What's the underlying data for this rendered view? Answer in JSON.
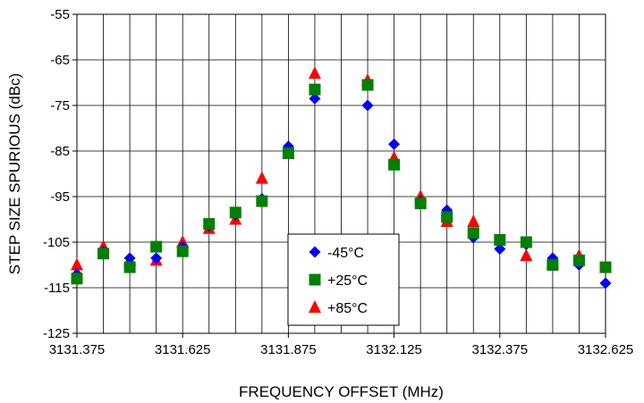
{
  "chart_data": {
    "type": "scatter",
    "title": "",
    "xlabel": "FREQUENCY OFFSET (MHz)",
    "ylabel": "STEP SIZE SPURIOUS (dBc)",
    "xlim": [
      3131.375,
      3132.625
    ],
    "ylim": [
      -125,
      -55
    ],
    "x_tick_labels": [
      "3131.375",
      "3131.625",
      "3131.875",
      "3132.125",
      "3132.375",
      "3132.625"
    ],
    "y_tick_labels": [
      "-55",
      "-65",
      "-75",
      "-85",
      "-95",
      "-105",
      "-115",
      "-125"
    ],
    "grid": true,
    "legend_position": "bottom-center",
    "x": [
      3131.375,
      3131.4375,
      3131.5,
      3131.5625,
      3131.625,
      3131.6875,
      3131.75,
      3131.8125,
      3131.875,
      3131.9375,
      3132.0,
      3132.0625,
      3132.125,
      3132.1875,
      3132.25,
      3132.3125,
      3132.375,
      3132.4375,
      3132.5,
      3132.5625,
      3132.625
    ],
    "series": [
      {
        "name": "-45°C",
        "marker": "diamond",
        "color": "#0000ff",
        "values": [
          -112.0,
          -107.0,
          -108.5,
          -108.5,
          -106.0,
          -101.5,
          -99.0,
          -95.5,
          -84.0,
          -73.5,
          null,
          -75.0,
          -83.5,
          -96.0,
          -98.0,
          -104.0,
          -106.5,
          -105.5,
          -108.5,
          -110.0,
          -114.0
        ]
      },
      {
        "name": "+25°C",
        "marker": "square",
        "color": "#008000",
        "values": [
          -113.0,
          -107.5,
          -110.5,
          -106.0,
          -107.0,
          -101.0,
          -98.5,
          -96.0,
          -85.5,
          -71.5,
          null,
          -70.5,
          -88.0,
          -96.5,
          -99.5,
          -103.0,
          -104.5,
          -105.0,
          -110.0,
          -109.0,
          -110.5
        ]
      },
      {
        "name": "+85°C",
        "marker": "triangle",
        "color": "#ff0000",
        "values": [
          -110.0,
          -106.0,
          -109.0,
          -109.0,
          -105.0,
          -102.0,
          -100.0,
          -91.0,
          -85.5,
          -68.0,
          null,
          -69.5,
          -86.5,
          -95.0,
          -100.5,
          -100.5,
          -104.5,
          -108.0,
          -109.5,
          -108.0,
          -110.5
        ]
      }
    ]
  }
}
